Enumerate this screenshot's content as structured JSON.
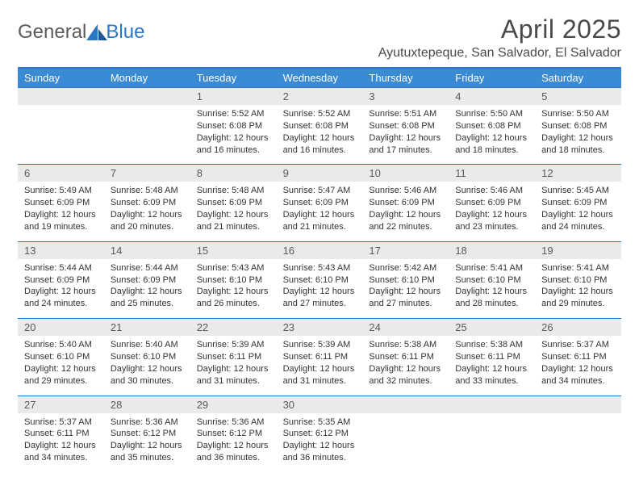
{
  "logo": {
    "text1": "General",
    "text2": "Blue"
  },
  "title": "April 2025",
  "location": "Ayutuxtepeque, San Salvador, El Salvador",
  "colors": {
    "header_bg": "#3b8bd4",
    "border": "#2a78c4",
    "daynum_bg": "#eaeaea",
    "text": "#333333",
    "title_text": "#4a4a4a"
  },
  "weekdays": [
    "Sunday",
    "Monday",
    "Tuesday",
    "Wednesday",
    "Thursday",
    "Friday",
    "Saturday"
  ],
  "weeks": [
    [
      {
        "n": "",
        "sr": "",
        "ss": "",
        "dl": ""
      },
      {
        "n": "",
        "sr": "",
        "ss": "",
        "dl": ""
      },
      {
        "n": "1",
        "sr": "5:52 AM",
        "ss": "6:08 PM",
        "dl": "12 hours and 16 minutes."
      },
      {
        "n": "2",
        "sr": "5:52 AM",
        "ss": "6:08 PM",
        "dl": "12 hours and 16 minutes."
      },
      {
        "n": "3",
        "sr": "5:51 AM",
        "ss": "6:08 PM",
        "dl": "12 hours and 17 minutes."
      },
      {
        "n": "4",
        "sr": "5:50 AM",
        "ss": "6:08 PM",
        "dl": "12 hours and 18 minutes."
      },
      {
        "n": "5",
        "sr": "5:50 AM",
        "ss": "6:08 PM",
        "dl": "12 hours and 18 minutes."
      }
    ],
    [
      {
        "n": "6",
        "sr": "5:49 AM",
        "ss": "6:09 PM",
        "dl": "12 hours and 19 minutes."
      },
      {
        "n": "7",
        "sr": "5:48 AM",
        "ss": "6:09 PM",
        "dl": "12 hours and 20 minutes."
      },
      {
        "n": "8",
        "sr": "5:48 AM",
        "ss": "6:09 PM",
        "dl": "12 hours and 21 minutes."
      },
      {
        "n": "9",
        "sr": "5:47 AM",
        "ss": "6:09 PM",
        "dl": "12 hours and 21 minutes."
      },
      {
        "n": "10",
        "sr": "5:46 AM",
        "ss": "6:09 PM",
        "dl": "12 hours and 22 minutes."
      },
      {
        "n": "11",
        "sr": "5:46 AM",
        "ss": "6:09 PM",
        "dl": "12 hours and 23 minutes."
      },
      {
        "n": "12",
        "sr": "5:45 AM",
        "ss": "6:09 PM",
        "dl": "12 hours and 24 minutes."
      }
    ],
    [
      {
        "n": "13",
        "sr": "5:44 AM",
        "ss": "6:09 PM",
        "dl": "12 hours and 24 minutes."
      },
      {
        "n": "14",
        "sr": "5:44 AM",
        "ss": "6:09 PM",
        "dl": "12 hours and 25 minutes."
      },
      {
        "n": "15",
        "sr": "5:43 AM",
        "ss": "6:10 PM",
        "dl": "12 hours and 26 minutes."
      },
      {
        "n": "16",
        "sr": "5:43 AM",
        "ss": "6:10 PM",
        "dl": "12 hours and 27 minutes."
      },
      {
        "n": "17",
        "sr": "5:42 AM",
        "ss": "6:10 PM",
        "dl": "12 hours and 27 minutes."
      },
      {
        "n": "18",
        "sr": "5:41 AM",
        "ss": "6:10 PM",
        "dl": "12 hours and 28 minutes."
      },
      {
        "n": "19",
        "sr": "5:41 AM",
        "ss": "6:10 PM",
        "dl": "12 hours and 29 minutes."
      }
    ],
    [
      {
        "n": "20",
        "sr": "5:40 AM",
        "ss": "6:10 PM",
        "dl": "12 hours and 29 minutes."
      },
      {
        "n": "21",
        "sr": "5:40 AM",
        "ss": "6:10 PM",
        "dl": "12 hours and 30 minutes."
      },
      {
        "n": "22",
        "sr": "5:39 AM",
        "ss": "6:11 PM",
        "dl": "12 hours and 31 minutes."
      },
      {
        "n": "23",
        "sr": "5:39 AM",
        "ss": "6:11 PM",
        "dl": "12 hours and 31 minutes."
      },
      {
        "n": "24",
        "sr": "5:38 AM",
        "ss": "6:11 PM",
        "dl": "12 hours and 32 minutes."
      },
      {
        "n": "25",
        "sr": "5:38 AM",
        "ss": "6:11 PM",
        "dl": "12 hours and 33 minutes."
      },
      {
        "n": "26",
        "sr": "5:37 AM",
        "ss": "6:11 PM",
        "dl": "12 hours and 34 minutes."
      }
    ],
    [
      {
        "n": "27",
        "sr": "5:37 AM",
        "ss": "6:11 PM",
        "dl": "12 hours and 34 minutes."
      },
      {
        "n": "28",
        "sr": "5:36 AM",
        "ss": "6:12 PM",
        "dl": "12 hours and 35 minutes."
      },
      {
        "n": "29",
        "sr": "5:36 AM",
        "ss": "6:12 PM",
        "dl": "12 hours and 36 minutes."
      },
      {
        "n": "30",
        "sr": "5:35 AM",
        "ss": "6:12 PM",
        "dl": "12 hours and 36 minutes."
      },
      {
        "n": "",
        "sr": "",
        "ss": "",
        "dl": ""
      },
      {
        "n": "",
        "sr": "",
        "ss": "",
        "dl": ""
      },
      {
        "n": "",
        "sr": "",
        "ss": "",
        "dl": ""
      }
    ]
  ],
  "labels": {
    "sunrise": "Sunrise: ",
    "sunset": "Sunset: ",
    "daylight": "Daylight: "
  }
}
